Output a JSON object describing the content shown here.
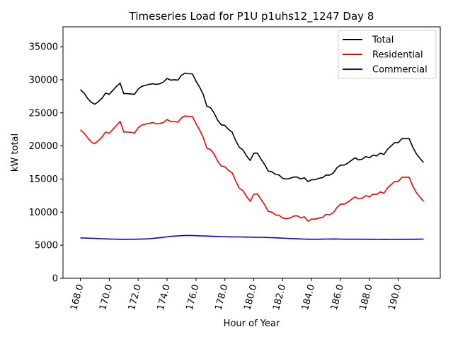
{
  "chart_data": {
    "type": "line",
    "title": "Timeseries Load for P1U p1uhs12_1247  Day 8",
    "xlabel": "Hour of Year",
    "ylabel": "kW total",
    "xlim": [
      166.8,
      192.9
    ],
    "ylim": [
      0,
      38000
    ],
    "xticks": [
      168,
      170,
      172,
      174,
      176,
      178,
      180,
      182,
      184,
      186,
      188,
      190
    ],
    "xtick_labels": [
      "168.0",
      "170.0",
      "172.0",
      "174.0",
      "176.0",
      "178.0",
      "180.0",
      "182.0",
      "184.0",
      "186.0",
      "188.0",
      "190.0"
    ],
    "yticks": [
      0,
      5000,
      10000,
      15000,
      20000,
      25000,
      30000,
      35000
    ],
    "ytick_labels": [
      "0",
      "5000",
      "10000",
      "15000",
      "20000",
      "25000",
      "30000",
      "35000"
    ],
    "legend_position": "top-right",
    "x": [
      168.0,
      168.25,
      168.5,
      168.75,
      169.0,
      169.25,
      169.5,
      169.75,
      170.0,
      170.25,
      170.5,
      170.75,
      171.0,
      171.25,
      171.5,
      171.75,
      172.0,
      172.25,
      172.5,
      172.75,
      173.0,
      173.25,
      173.5,
      173.75,
      174.0,
      174.25,
      174.5,
      174.75,
      175.0,
      175.25,
      175.5,
      175.75,
      176.0,
      176.25,
      176.5,
      176.75,
      177.0,
      177.25,
      177.5,
      177.75,
      178.0,
      178.25,
      178.5,
      178.75,
      179.0,
      179.25,
      179.5,
      179.75,
      180.0,
      180.25,
      180.5,
      180.75,
      181.0,
      181.25,
      181.5,
      181.75,
      182.0,
      182.25,
      182.5,
      182.75,
      183.0,
      183.25,
      183.5,
      183.75,
      184.0,
      184.25,
      184.5,
      184.75,
      185.0,
      185.25,
      185.5,
      185.75,
      186.0,
      186.25,
      186.5,
      186.75,
      187.0,
      187.25,
      187.5,
      187.75,
      188.0,
      188.25,
      188.5,
      188.75,
      189.0,
      189.25,
      189.5,
      189.75,
      190.0,
      190.25,
      190.5,
      190.75,
      191.0,
      191.25,
      191.5,
      191.75
    ],
    "series": [
      {
        "name": "Total",
        "color": "#000000",
        "values": [
          28500,
          28000,
          27200,
          26600,
          26300,
          26700,
          27200,
          28000,
          27800,
          28400,
          29000,
          29500,
          27900,
          27900,
          27850,
          27800,
          28600,
          29000,
          29150,
          29300,
          29400,
          29300,
          29400,
          29650,
          30200,
          29950,
          30000,
          29950,
          30700,
          31000,
          30900,
          30900,
          29800,
          28900,
          27800,
          26000,
          25800,
          25000,
          23900,
          23200,
          23100,
          22500,
          22100,
          20800,
          19800,
          19400,
          18500,
          17800,
          18900,
          18900,
          18000,
          17200,
          16200,
          16100,
          15700,
          15600,
          15100,
          15000,
          15100,
          15300,
          15300,
          15000,
          15200,
          14600,
          14900,
          14900,
          15100,
          15200,
          15600,
          15600,
          15900,
          16700,
          17100,
          17100,
          17400,
          17800,
          18200,
          17900,
          18000,
          18400,
          18200,
          18600,
          18500,
          18900,
          18700,
          19500,
          20000,
          20500,
          20500,
          21100,
          21100,
          21100,
          19800,
          18800,
          18100,
          17500
        ]
      },
      {
        "name": "Residential",
        "color": "#ff0000",
        "values": [
          22450,
          21950,
          21250,
          20600,
          20350,
          20800,
          21350,
          22100,
          21900,
          22500,
          23100,
          23700,
          22100,
          22100,
          22050,
          21950,
          22750,
          23150,
          23300,
          23400,
          23550,
          23350,
          23400,
          23550,
          24000,
          23700,
          23700,
          23600,
          24250,
          24550,
          24450,
          24450,
          23350,
          22400,
          21300,
          19650,
          19450,
          18800,
          17700,
          16950,
          16850,
          16300,
          15950,
          14700,
          13600,
          13250,
          12350,
          11650,
          12700,
          12750,
          11900,
          11100,
          10100,
          10000,
          9600,
          9500,
          9100,
          9000,
          9100,
          9400,
          9450,
          9150,
          9300,
          8650,
          8950,
          8950,
          9100,
          9200,
          9650,
          9600,
          9900,
          10700,
          11200,
          11200,
          11500,
          11900,
          12300,
          12000,
          12100,
          12500,
          12300,
          12700,
          12650,
          13050,
          12850,
          13650,
          14150,
          14650,
          14650,
          15250,
          15250,
          15250,
          13900,
          12950,
          12250,
          11600
        ]
      },
      {
        "name": "Commercial",
        "color": "#0000ff",
        "values": [
          6100,
          6080,
          6060,
          6040,
          6020,
          6000,
          5980,
          5960,
          5940,
          5920,
          5900,
          5890,
          5890,
          5890,
          5900,
          5900,
          5910,
          5930,
          5950,
          5980,
          6020,
          6070,
          6130,
          6200,
          6270,
          6330,
          6370,
          6400,
          6440,
          6470,
          6470,
          6460,
          6440,
          6420,
          6400,
          6380,
          6360,
          6340,
          6320,
          6300,
          6290,
          6270,
          6260,
          6250,
          6240,
          6230,
          6220,
          6220,
          6210,
          6200,
          6190,
          6180,
          6160,
          6140,
          6120,
          6090,
          6060,
          6030,
          6010,
          5990,
          5970,
          5950,
          5920,
          5900,
          5900,
          5890,
          5900,
          5910,
          5920,
          5940,
          5950,
          5940,
          5920,
          5900,
          5900,
          5900,
          5900,
          5900,
          5900,
          5900,
          5890,
          5880,
          5870,
          5860,
          5850,
          5860,
          5870,
          5880,
          5890,
          5890,
          5890,
          5890,
          5890,
          5900,
          5910,
          5920
        ]
      }
    ]
  }
}
